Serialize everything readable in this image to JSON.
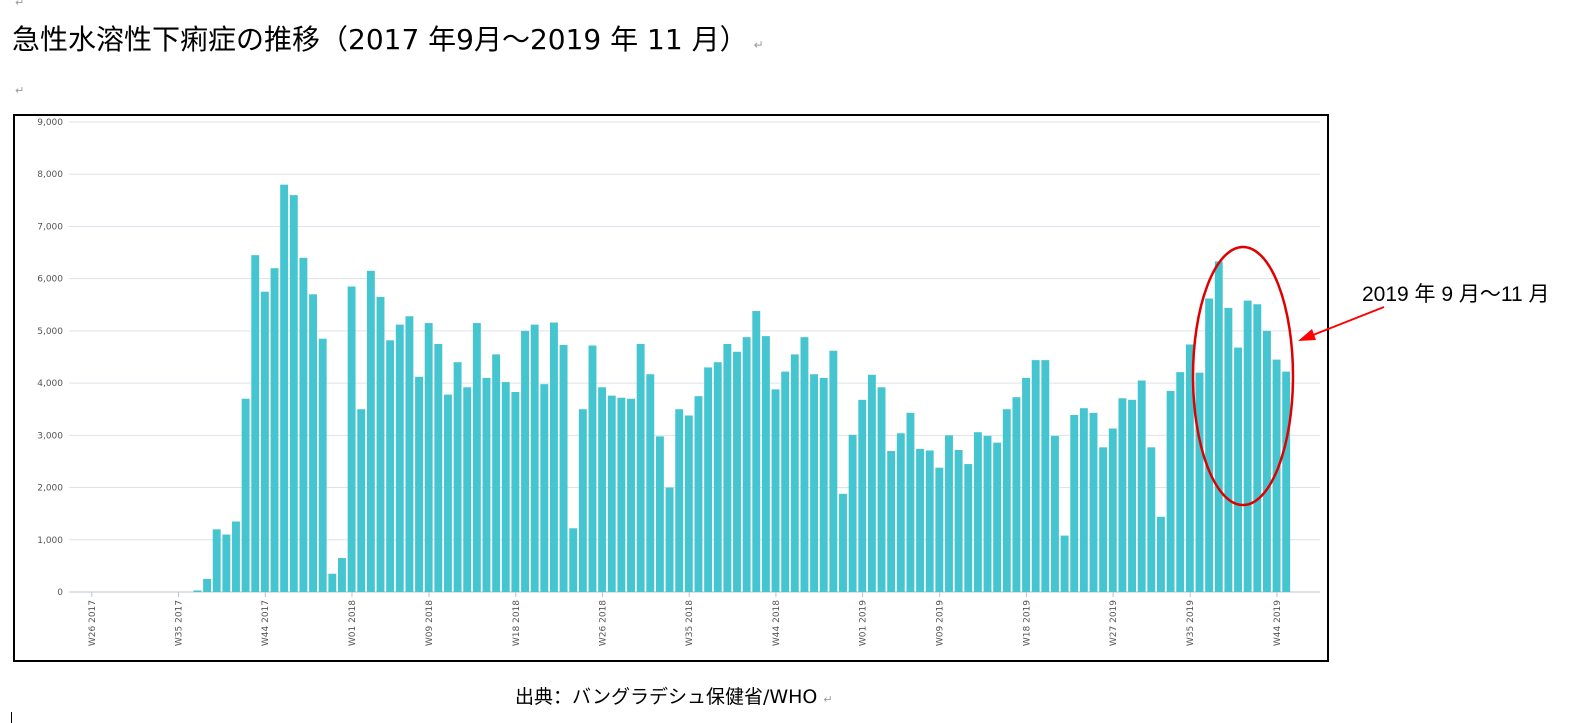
{
  "document": {
    "title": "急性水溶性下痢症の推移（2017 年9月〜2019 年 11 月）",
    "source": "出典：バングラデシュ保健省/WHO",
    "annotation": "2019 年 9 月〜11 月",
    "paragraph_mark": "↵"
  },
  "colors": {
    "bar": "#45c5cf",
    "grid": "#dde3ea",
    "axis_text": "#555555",
    "highlight": "#e00000",
    "frame": "#000000"
  },
  "chart_data": {
    "type": "bar",
    "title": "",
    "xlabel": "",
    "ylabel": "",
    "ylim": [
      0,
      9000
    ],
    "y_ticks": [
      "0",
      "1,000",
      "2,000",
      "3,000",
      "4,000",
      "5,000",
      "6,000",
      "7,000",
      "8,000",
      "9,000"
    ],
    "y_tick_values": [
      0,
      1000,
      2000,
      3000,
      4000,
      5000,
      6000,
      7000,
      8000,
      9000
    ],
    "x_tick_labels": [
      "W26 2017",
      "W35 2017",
      "W44 2017",
      "W01 2018",
      "W09 2018",
      "W18 2018",
      "W26 2018",
      "W35 2018",
      "W44 2018",
      "W01 2019",
      "W09 2019",
      "W18 2019",
      "W27 2019",
      "W35 2019",
      "W44 2019"
    ],
    "x_tick_weeks": [
      0,
      9,
      18,
      27,
      35,
      44,
      53,
      62,
      71,
      80,
      88,
      97,
      106,
      114,
      123
    ],
    "start_week": "W26 2017",
    "values": [
      0,
      0,
      0,
      0,
      0,
      0,
      0,
      0,
      0,
      0,
      0,
      0,
      30,
      250,
      1200,
      1100,
      1350,
      3700,
      6450,
      5750,
      6200,
      7800,
      7600,
      6400,
      5700,
      4850,
      350,
      650,
      5850,
      3500,
      6150,
      5650,
      4820,
      5120,
      5280,
      4120,
      5150,
      4750,
      3780,
      4400,
      3920,
      5150,
      4100,
      4550,
      4020,
      3830,
      5000,
      5120,
      3980,
      5160,
      4730,
      1220,
      3500,
      4720,
      3920,
      3760,
      3720,
      3700,
      4750,
      4170,
      2980,
      2000,
      3500,
      3380,
      3750,
      4300,
      4400,
      4750,
      4600,
      4880,
      5380,
      4900,
      3880,
      4220,
      4550,
      4880,
      4170,
      4100,
      4620,
      1880,
      3010,
      3680,
      4160,
      3920,
      2700,
      3040,
      3430,
      2740,
      2710,
      2380,
      3000,
      2720,
      2450,
      3060,
      2990,
      2860,
      3500,
      3730,
      4100,
      4440,
      4440,
      2990,
      1080,
      3390,
      3520,
      3430,
      2770,
      3130,
      3710,
      3680,
      4050,
      2770,
      1440,
      3850,
      4210,
      4740,
      4200,
      5620,
      6330,
      5440,
      4680,
      5580,
      5510,
      5000,
      4450,
      4220
    ],
    "highlight": {
      "label": "2019 年 9 月〜11 月",
      "from_week": 114,
      "to_week": 126
    }
  }
}
